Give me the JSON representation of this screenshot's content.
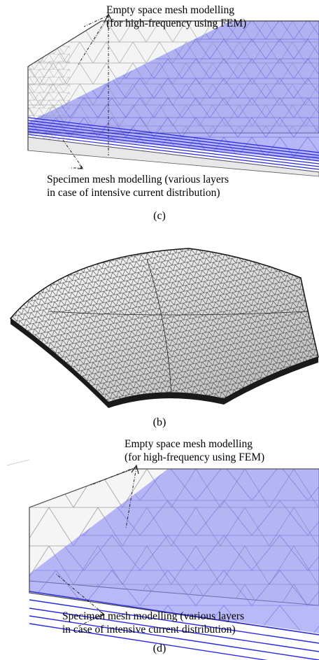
{
  "panel_c": {
    "label_top_line1": "Empty space mesh modelling",
    "label_top_line2": "(for high-frequency using FEM)",
    "label_bottom_line1": "Specimen mesh modelling (various layers",
    "label_bottom_line2": "in case of intensive current distribution)",
    "caption": "(c)"
  },
  "panel_b": {
    "caption": "(b)"
  },
  "panel_d": {
    "label_top_line1": "Empty space mesh modelling",
    "label_top_line2": "(for high-frequency using FEM)",
    "label_bottom_line1": "Specimen mesh modelling (various layers",
    "label_bottom_line2": "in case of intensive current distribution)",
    "caption": "(d)"
  },
  "colors": {
    "mesh_blue": "#3a3aff",
    "mesh_grey": "#9a9a9a",
    "specimen_dark": "#333333"
  }
}
